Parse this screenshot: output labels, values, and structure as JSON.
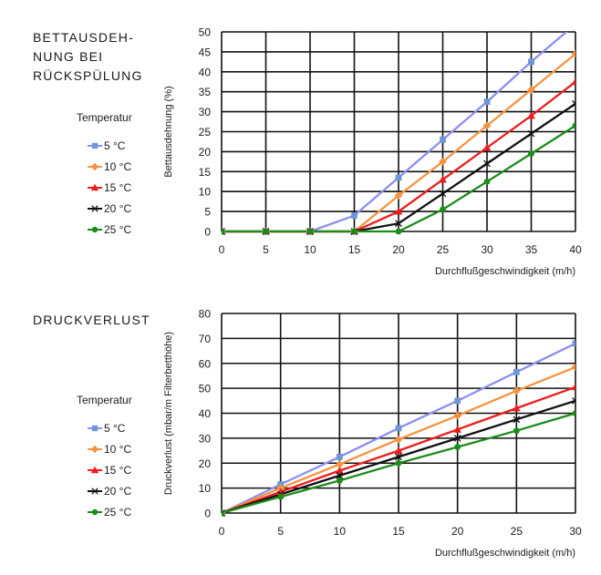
{
  "chart_data": [
    {
      "type": "line",
      "title": "BETTAUSDEH-\nNUNG BEI\nRÜCKSPÜLUNG",
      "xlabel": "Durchflußgeschwindigkeit (m/h)",
      "ylabel": "Bettausdehnung (%)",
      "xlim": [
        0,
        40
      ],
      "ylim": [
        0,
        50
      ],
      "xticks": [
        "0",
        "5",
        "10",
        "15",
        "20",
        "25",
        "30",
        "35",
        "40"
      ],
      "yticks": [
        "0",
        "5",
        "10",
        "15",
        "20",
        "25",
        "30",
        "35",
        "40",
        "45",
        "50"
      ],
      "grid": true,
      "legend_title": "Temperatur",
      "legend_position": "left",
      "series": [
        {
          "name": "5 °C",
          "color": "#8c8ff0",
          "marker": "square",
          "markerColor": "#6e97d8",
          "x": [
            0,
            5,
            10,
            15,
            20,
            25,
            30,
            35,
            39.5
          ],
          "y": [
            0,
            0,
            0,
            4,
            13.5,
            23,
            32.5,
            42.5,
            51
          ]
        },
        {
          "name": "10 °C",
          "color": "#f7933e",
          "marker": "diamond",
          "markerColor": "#f7933e",
          "x": [
            0,
            5,
            10,
            15,
            20,
            25,
            30,
            35,
            40
          ],
          "y": [
            0,
            0,
            0,
            0,
            9,
            17.5,
            26.5,
            35.5,
            44.5
          ]
        },
        {
          "name": "15 °C",
          "color": "#ee1c1c",
          "marker": "triangle",
          "markerColor": "#ee1c1c",
          "x": [
            0,
            5,
            10,
            15,
            20,
            25,
            30,
            35,
            40
          ],
          "y": [
            0,
            0,
            0,
            0,
            5,
            13,
            21,
            29,
            37.5
          ]
        },
        {
          "name": "20 °C",
          "color": "#111111",
          "marker": "cross",
          "markerColor": "#111111",
          "x": [
            0,
            5,
            10,
            15,
            20,
            25,
            30,
            35,
            40
          ],
          "y": [
            0,
            0,
            0,
            0,
            2,
            9.5,
            17,
            24.5,
            32
          ]
        },
        {
          "name": "25 °C",
          "color": "#1a8c1a",
          "marker": "circle",
          "markerColor": "#1a8c1a",
          "x": [
            0,
            5,
            10,
            15,
            20,
            25,
            30,
            35,
            40
          ],
          "y": [
            0,
            0,
            0,
            0,
            0,
            5.5,
            12.5,
            19.5,
            26.5
          ]
        }
      ]
    },
    {
      "type": "line",
      "title": "DRUCKVERLUST",
      "xlabel": "Durchflußgeschwindigkeit (m/h)",
      "ylabel": "Druckverlust  (mbar/m Filterbetthöhe)",
      "xlim": [
        0,
        30
      ],
      "ylim": [
        0,
        80
      ],
      "xticks": [
        "0",
        "5",
        "10",
        "15",
        "20",
        "25",
        "30"
      ],
      "yticks": [
        "0",
        "10",
        "20",
        "30",
        "40",
        "50",
        "60",
        "70",
        "80"
      ],
      "grid": true,
      "legend_title": "Temperatur",
      "legend_position": "left",
      "series": [
        {
          "name": "5 °C",
          "color": "#8c8ff0",
          "marker": "square",
          "markerColor": "#6e97d8",
          "x": [
            0,
            5,
            10,
            15,
            20,
            25,
            30
          ],
          "y": [
            0,
            11.5,
            22.5,
            34,
            45,
            56.5,
            68
          ]
        },
        {
          "name": "10 °C",
          "color": "#f7933e",
          "marker": "diamond",
          "markerColor": "#f7933e",
          "x": [
            0,
            5,
            10,
            15,
            20,
            25,
            30
          ],
          "y": [
            0,
            10,
            19.5,
            29.5,
            39,
            49,
            58.5
          ]
        },
        {
          "name": "15 °C",
          "color": "#ee1c1c",
          "marker": "triangle",
          "markerColor": "#ee1c1c",
          "x": [
            0,
            5,
            10,
            15,
            20,
            25,
            30
          ],
          "y": [
            0,
            8.5,
            17,
            25,
            33.5,
            42,
            50.5
          ]
        },
        {
          "name": "20 °C",
          "color": "#111111",
          "marker": "cross",
          "markerColor": "#111111",
          "x": [
            0,
            5,
            10,
            15,
            20,
            25,
            30
          ],
          "y": [
            0,
            7.5,
            15,
            22.5,
            30,
            37.5,
            45
          ]
        },
        {
          "name": "25 °C",
          "color": "#1a8c1a",
          "marker": "circle",
          "markerColor": "#1a8c1a",
          "x": [
            0,
            5,
            10,
            15,
            20,
            25,
            30
          ],
          "y": [
            0,
            6.5,
            13,
            20,
            26.5,
            33,
            40
          ]
        }
      ]
    }
  ]
}
